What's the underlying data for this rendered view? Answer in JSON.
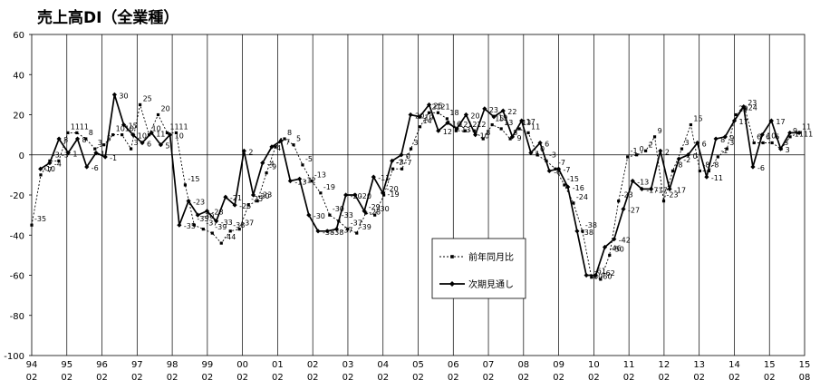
{
  "chart_data": {
    "type": "line",
    "title": "売上高DI（全業種）",
    "ylim": [
      -100,
      60
    ],
    "yticks": [
      "60",
      "40",
      "20",
      "0",
      "-20",
      "-40",
      "-60",
      "-80",
      "-100"
    ],
    "x_labels_year": [
      "94",
      "95",
      "96",
      "97",
      "98",
      "99",
      "00",
      "01",
      "02",
      "03",
      "04",
      "05",
      "06",
      "07",
      "08",
      "09",
      "10",
      "11",
      "12",
      "13",
      "14",
      "15",
      "15"
    ],
    "x_labels_month": [
      "02",
      "02",
      "02",
      "02",
      "02",
      "02",
      "02",
      "02",
      "02",
      "02",
      "02",
      "02",
      "02",
      "02",
      "02",
      "02",
      "02",
      "02",
      "02",
      "02",
      "02",
      "02",
      "08"
    ],
    "legend_position": "center-right",
    "series": [
      {
        "name": "前年同月比",
        "style": "dotted-square",
        "color": "#000000",
        "values": [
          -35,
          -10,
          -3,
          -3,
          11,
          11,
          8,
          3,
          5,
          10,
          10,
          3,
          25,
          10,
          20,
          11,
          11,
          -15,
          -35,
          -37,
          -39,
          -44,
          -38,
          -37,
          -25,
          -23,
          -9,
          4,
          8,
          5,
          -5,
          -13,
          -19,
          -30,
          -33,
          -37,
          -39,
          -29,
          -30,
          -20,
          -7,
          -7,
          3,
          14,
          21,
          21,
          18,
          12,
          12,
          12,
          8,
          15,
          13,
          8,
          13,
          11,
          0,
          -3,
          -7,
          -15,
          -24,
          -38,
          -61,
          -62,
          -50,
          -23,
          -1,
          0,
          2,
          9,
          -23,
          -8,
          3,
          15,
          -8,
          -8,
          -1,
          3,
          20,
          23,
          6,
          6,
          6,
          3,
          9,
          11
        ],
        "labels": [
          "-35",
          "-10",
          "-3",
          "-3",
          "11",
          "11",
          "8",
          "3",
          "5",
          "10",
          "10",
          "3",
          "25",
          "10",
          "20",
          "11",
          "11",
          "-15",
          "-35",
          "-37",
          "-39",
          "-44",
          "-38",
          "-37",
          "-25",
          "-23",
          "-9",
          "4",
          "8",
          "5",
          "-5",
          "-13",
          "-19",
          "-30",
          "-33",
          "-37",
          "-39",
          "-29",
          "-30",
          "-20",
          "-7",
          "-7",
          "3",
          "14",
          "21",
          "21",
          "18",
          "12",
          "12",
          "12",
          "8",
          "15",
          "13",
          "8",
          "13",
          "11",
          "0",
          "-3",
          "-7",
          "-15",
          "-24",
          "-38",
          "-61",
          "-62",
          "-50",
          "-23",
          "-1",
          "0",
          "2",
          "9",
          "-23",
          "-8",
          "3",
          "15",
          "-8",
          "-8",
          "-1",
          "3",
          "20",
          "23",
          "6",
          "6",
          "6",
          "3",
          "9",
          "11"
        ]
      },
      {
        "name": "次期見通し",
        "style": "solid-diamond",
        "color": "#000000",
        "values": [
          -7,
          -4,
          8,
          1,
          8,
          -6,
          1,
          -1,
          30,
          15,
          10,
          6,
          11,
          5,
          10,
          -35,
          -23,
          -30,
          -28,
          -33,
          -21,
          -25,
          2,
          -20,
          -4,
          4,
          7,
          -13,
          -12,
          -30,
          -38,
          -38,
          -37,
          -20,
          -20,
          -28,
          -11,
          -19,
          -3,
          0,
          20,
          19,
          25,
          12,
          16,
          13,
          20,
          10,
          23,
          19,
          22,
          9,
          17,
          1,
          6,
          -8,
          -7,
          -16,
          -38,
          -60,
          -60,
          -46,
          -42,
          -27,
          -13,
          -17,
          -17,
          2,
          -17,
          -2,
          0,
          6,
          -11,
          8,
          9,
          17,
          24,
          -6,
          10,
          17,
          3,
          11,
          11
        ],
        "labels": [
          "-7",
          "-4",
          "8",
          "1",
          "8",
          "-6",
          "1",
          "-1",
          "30",
          "15",
          "10",
          "6",
          "11",
          "5",
          "10",
          "-35",
          "-23",
          "-30",
          "-28",
          "-33",
          "-21",
          "-25",
          "2",
          "-20",
          "-4",
          "4",
          "7",
          "-13",
          "-12",
          "-30",
          "-38",
          "-38",
          "-37",
          "-20",
          "-20",
          "-28",
          "-11",
          "-19",
          "-3",
          "0",
          "20",
          "19",
          "25",
          "12",
          "16",
          "13",
          "20",
          "10",
          "23",
          "19",
          "22",
          "9",
          "17",
          "1",
          "6",
          "-8",
          "-7",
          "-16",
          "-38",
          "-60",
          "-60",
          "-46",
          "-42",
          "-27",
          "-13",
          "-17",
          "-17",
          "2",
          "-17",
          "-2",
          "0",
          "6",
          "-11",
          "8",
          "9",
          "17",
          "24",
          "-6",
          "10",
          "17",
          "3",
          "11",
          "11"
        ]
      }
    ]
  }
}
